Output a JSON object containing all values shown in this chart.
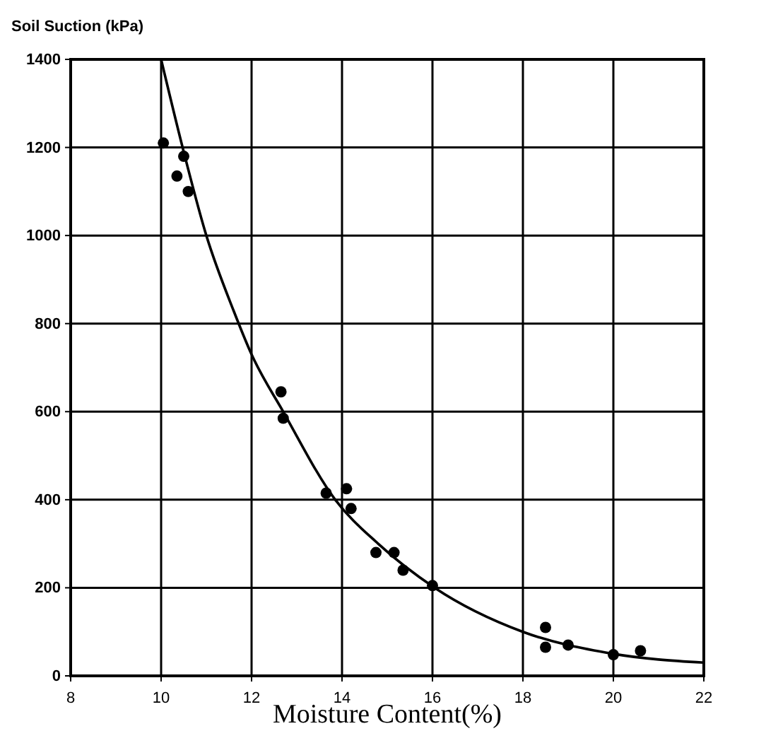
{
  "chart_data": {
    "type": "scatter",
    "ylabel": "Soil Suction (kPa)",
    "xlabel": "Moisture Content(%)",
    "xlim": [
      8,
      22
    ],
    "xticks": [
      8,
      10,
      12,
      14,
      16,
      18,
      20,
      22
    ],
    "ylim": [
      0,
      1400
    ],
    "yticks": [
      0,
      200,
      400,
      600,
      800,
      1000,
      1200,
      1400
    ],
    "grid": true,
    "marker": "circle",
    "series": [
      {
        "color": "#000000",
        "x": [
          10.05,
          10.35,
          10.5,
          10.6,
          12.65,
          12.7,
          13.65,
          14.1,
          14.2,
          14.75,
          15.15,
          15.35,
          16.0,
          18.5,
          18.5,
          19.0,
          20.0,
          20.6
        ],
        "values": [
          1210,
          1135,
          1180,
          1100,
          645,
          585,
          415,
          425,
          380,
          280,
          280,
          240,
          205,
          110,
          65,
          70,
          48,
          57
        ]
      },
      {
        "type": "line",
        "color": "#000000",
        "marker": "none",
        "x": [
          10,
          10.5,
          11,
          11.6,
          12,
          12.7,
          13.85,
          14.8,
          16.05,
          18,
          20,
          22
        ],
        "values": [
          1400,
          1190,
          1000,
          830,
          730,
          600,
          400,
          300,
          200,
          100,
          50,
          30
        ]
      }
    ]
  }
}
